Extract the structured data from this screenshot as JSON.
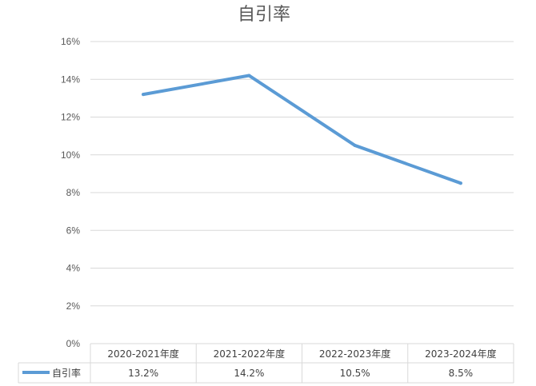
{
  "chart_data": {
    "type": "line",
    "title": "自引率",
    "categories": [
      "2020-2021年度",
      "2021-2022年度",
      "2022-2023年度",
      "2023-2024年度"
    ],
    "series": [
      {
        "name": "自引率",
        "values": [
          13.2,
          14.2,
          10.5,
          8.5
        ],
        "labels": [
          "13.2%",
          "14.2%",
          "10.5%",
          "8.5%"
        ],
        "color": "#5B9BD5"
      }
    ],
    "y_ticks": [
      "0%",
      "2%",
      "4%",
      "6%",
      "8%",
      "10%",
      "12%",
      "14%",
      "16%"
    ],
    "ylim": [
      0,
      16
    ],
    "grid": true,
    "legend": "data-table",
    "colors": {
      "grid": "#d9d9d9",
      "text": "#595959"
    }
  }
}
